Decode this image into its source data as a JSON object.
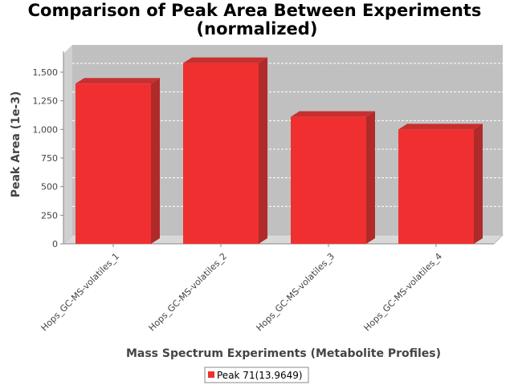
{
  "chart_data": {
    "type": "bar",
    "title": "Comparison of Peak Area Between Experiments",
    "subtitle": "(normalized)",
    "xlabel": "Mass Spectrum Experiments (Metabolite Profiles)",
    "ylabel": "Peak Area (1e-3)",
    "categories": [
      "Hops_GC-MS-volatiles_1",
      "Hops_GC-MS-volatiles_2",
      "Hops_GC-MS-volatiles_3",
      "Hops_GC-MS-volatiles_4"
    ],
    "series": [
      {
        "name": "Peak 71(13.9649)",
        "color": "#f03030",
        "values": [
          1400,
          1580,
          1110,
          1000
        ]
      }
    ],
    "y_ticks": [
      "0",
      "250",
      "500",
      "750",
      "1,000",
      "1,250",
      "1,500"
    ],
    "y_tick_values": [
      0,
      250,
      500,
      750,
      1000,
      1250,
      1500
    ],
    "ylim": [
      0,
      1680
    ],
    "grid": true,
    "legend_position": "bottom",
    "plot_background": "#c0c0c0",
    "style": "3d"
  }
}
